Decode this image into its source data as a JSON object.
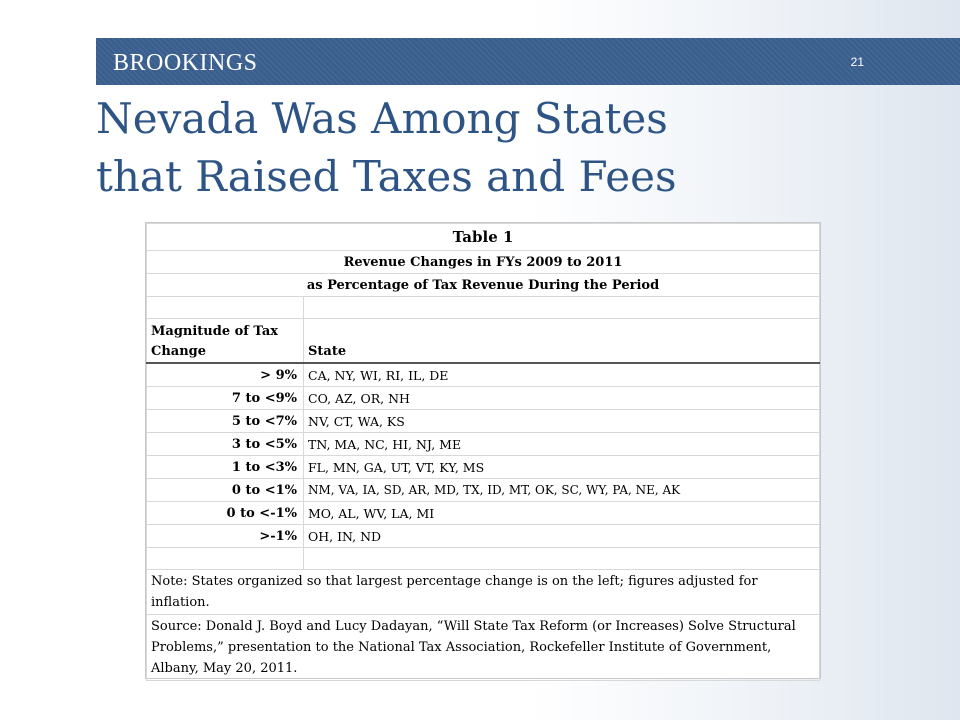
{
  "header": {
    "brand": "BROOKINGS",
    "page_number": "21"
  },
  "title": {
    "line1": "Nevada Was Among States",
    "line2": "that Raised Taxes and Fees"
  },
  "table": {
    "title": "Table 1",
    "subtitle1": "Revenue Changes in FYs 2009 to 2011",
    "subtitle2": "as Percentage of Tax Revenue During the Period",
    "col_header_magnitude": "Magnitude of Tax Change",
    "col_header_state": "State",
    "rows": [
      {
        "magnitude": "> 9%",
        "states": "CA, NY, WI, RI, IL, DE"
      },
      {
        "magnitude": "7 to <9%",
        "states": "CO, AZ, OR, NH"
      },
      {
        "magnitude": "5 to <7%",
        "states": "NV, CT, WA, KS"
      },
      {
        "magnitude": "3 to <5%",
        "states": "TN, MA, NC, HI, NJ, ME"
      },
      {
        "magnitude": "1 to <3%",
        "states": "FL, MN, GA, UT, VT, KY, MS"
      },
      {
        "magnitude": "0 to <1%",
        "states": "NM, VA, IA, SD, AR, MD, TX, ID, MT, OK, SC, WY, PA, NE, AK"
      },
      {
        "magnitude": "0 to <-1%",
        "states": "MO, AL, WV, LA, MI"
      },
      {
        "magnitude": ">-1%",
        "states": "OH, IN, ND"
      }
    ],
    "note": "Note: States organized so that largest percentage change is on the left; figures adjusted for inflation.",
    "source": "Source: Donald J. Boyd and Lucy Dadayan, “Will State Tax Reform (or Increases) Solve Structural Problems,” presentation to the National Tax Association, Rockefeller Institute of Government, Albany, May 20, 2011."
  },
  "colors": {
    "banner": "#3a5f8e",
    "title": "#2e5486"
  }
}
